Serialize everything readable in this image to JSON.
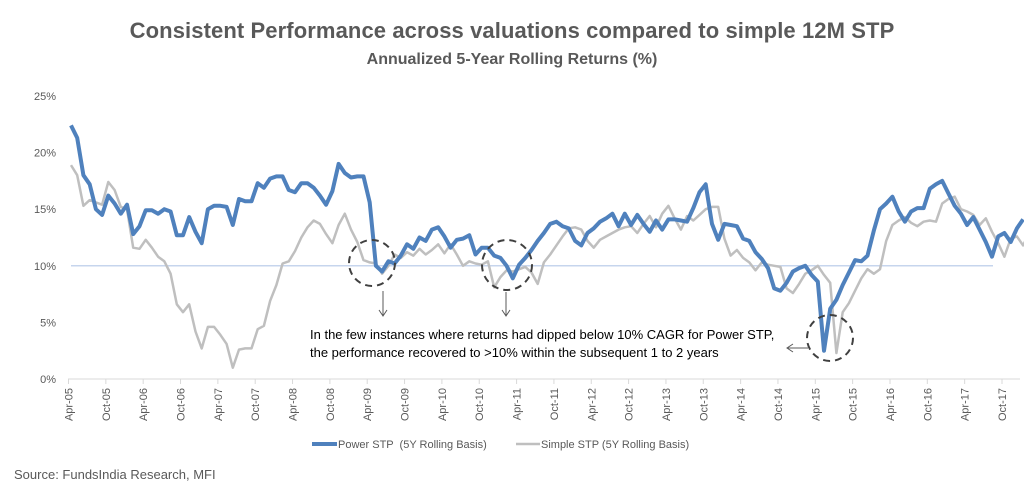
{
  "chart_data": {
    "type": "line",
    "title": "Consistent Performance across valuations compared to simple 12M STP",
    "subtitle": "Annualized 5-Year Rolling Returns (%)",
    "xlabel": "",
    "ylabel": "",
    "ylim": [
      0,
      25
    ],
    "yticks": [
      "0%",
      "5%",
      "10%",
      "15%",
      "20%",
      "25%"
    ],
    "ytick_values": [
      0,
      5,
      10,
      15,
      20,
      25
    ],
    "xticks": [
      "Apr-05",
      "Oct-05",
      "Apr-06",
      "Oct-06",
      "Apr-07",
      "Oct-07",
      "Apr-08",
      "Oct-08",
      "Apr-09",
      "Oct-09",
      "Apr-10",
      "Oct-10",
      "Apr-11",
      "Oct-11",
      "Apr-12",
      "Oct-12",
      "Apr-13",
      "Oct-13",
      "Apr-14",
      "Oct-14",
      "Apr-15",
      "Oct-15",
      "Apr-16",
      "Oct-16",
      "Apr-17",
      "Oct-17"
    ],
    "x_start": "Apr-05",
    "x_unit": "month",
    "reference_line": {
      "value": 10,
      "color": "#B4C7E7"
    },
    "legend_position": "bottom",
    "series": [
      {
        "name": "Power STP  (5Y Rolling Basis)",
        "color": "#4F81BD",
        "values": [
          22.4,
          21.3,
          18.0,
          17.2,
          15.0,
          14.5,
          16.2,
          15.5,
          14.6,
          15.4,
          12.8,
          13.5,
          14.9,
          14.9,
          14.6,
          15.0,
          14.8,
          12.7,
          12.7,
          14.3,
          13.0,
          12.0,
          15.0,
          15.3,
          15.3,
          15.2,
          13.6,
          15.9,
          15.7,
          15.7,
          17.3,
          16.9,
          17.7,
          17.9,
          17.9,
          16.7,
          16.5,
          17.3,
          17.3,
          16.9,
          16.2,
          15.4,
          16.6,
          19.0,
          18.2,
          17.8,
          17.9,
          17.9,
          15.6,
          10.0,
          9.5,
          10.4,
          10.2,
          10.9,
          11.9,
          11.5,
          12.5,
          12.2,
          13.2,
          13.4,
          12.6,
          11.6,
          12.3,
          12.4,
          12.7,
          11.0,
          11.6,
          11.6,
          10.9,
          10.7,
          10.0,
          8.9,
          10.1,
          10.7,
          11.4,
          12.2,
          12.9,
          13.7,
          13.9,
          13.5,
          13.3,
          12.2,
          11.8,
          12.9,
          13.3,
          13.9,
          14.2,
          14.6,
          13.5,
          14.6,
          13.6,
          14.5,
          13.7,
          13.0,
          14.0,
          13.2,
          14.1,
          14.1,
          14.0,
          13.9,
          15.1,
          16.5,
          17.2,
          13.7,
          12.3,
          13.7,
          13.6,
          13.5,
          12.4,
          12.2,
          11.2,
          10.6,
          9.8,
          8.0,
          7.8,
          8.5,
          9.5,
          9.8,
          10.0,
          9.2,
          8.6,
          2.5,
          6.2,
          7.0,
          8.3,
          9.4,
          10.5,
          10.4,
          10.9,
          13.1,
          15.0,
          15.5,
          16.1,
          14.8,
          13.9,
          14.8,
          15.1,
          15.1,
          16.8,
          17.2,
          17.5,
          16.4,
          15.3,
          14.6,
          13.6,
          14.3,
          13.2,
          12.1,
          10.8,
          12.6,
          12.9,
          12.1,
          13.3,
          14.1
        ]
      },
      {
        "name": "Simple STP (5Y Rolling Basis)",
        "color": "#BFBFBF",
        "values": [
          18.9,
          18.0,
          15.3,
          15.8,
          15.6,
          15.4,
          17.4,
          16.7,
          15.2,
          15.0,
          11.6,
          11.5,
          12.3,
          11.6,
          10.8,
          10.4,
          9.3,
          6.6,
          5.9,
          6.6,
          4.2,
          2.7,
          4.6,
          4.6,
          3.9,
          3.1,
          1.0,
          2.6,
          2.7,
          2.7,
          4.4,
          4.7,
          6.9,
          8.3,
          10.2,
          10.4,
          11.3,
          12.5,
          13.4,
          14.0,
          13.7,
          12.8,
          12.0,
          13.6,
          14.6,
          13.2,
          12.1,
          10.5,
          10.3,
          10.2,
          9.3,
          10.0,
          11.0,
          10.7,
          11.2,
          10.9,
          11.5,
          11.0,
          11.4,
          11.9,
          11.1,
          11.9,
          11.0,
          10.0,
          10.4,
          10.2,
          10.1,
          10.4,
          8.1,
          9.0,
          9.6,
          9.5,
          9.7,
          9.9,
          9.4,
          8.4,
          10.3,
          11.0,
          11.8,
          12.6,
          13.3,
          13.4,
          13.2,
          12.2,
          11.6,
          12.3,
          12.6,
          12.9,
          13.2,
          13.4,
          13.5,
          12.9,
          13.7,
          14.4,
          13.4,
          14.6,
          15.3,
          14.2,
          13.2,
          14.4,
          14.0,
          14.5,
          15.0,
          15.2,
          15.2,
          12.4,
          10.9,
          11.4,
          10.7,
          10.3,
          9.6,
          10.3,
          10.1,
          10.0,
          9.9,
          8.0,
          7.6,
          8.4,
          9.3,
          9.6,
          10.0,
          9.2,
          8.5,
          2.3,
          5.9,
          6.7,
          7.8,
          8.9,
          9.7,
          9.3,
          9.7,
          12.2,
          13.6,
          14.0,
          14.3,
          13.8,
          13.5,
          13.9,
          14.0,
          13.9,
          15.5,
          15.9,
          16.1,
          15.0,
          14.8,
          14.5,
          13.6,
          14.2,
          13.0,
          12.0,
          10.8,
          12.4,
          12.6,
          11.8,
          12.9,
          13.8
        ]
      }
    ],
    "annotations": [
      {
        "text_line1": "In the few instances where returns had dipped below 10% CAGR for Power STP,",
        "text_line2": "the performance recovered to >10% within the subsequent 1 to 2 years"
      }
    ],
    "source": "Source: FundsIndia Research, MFI"
  }
}
